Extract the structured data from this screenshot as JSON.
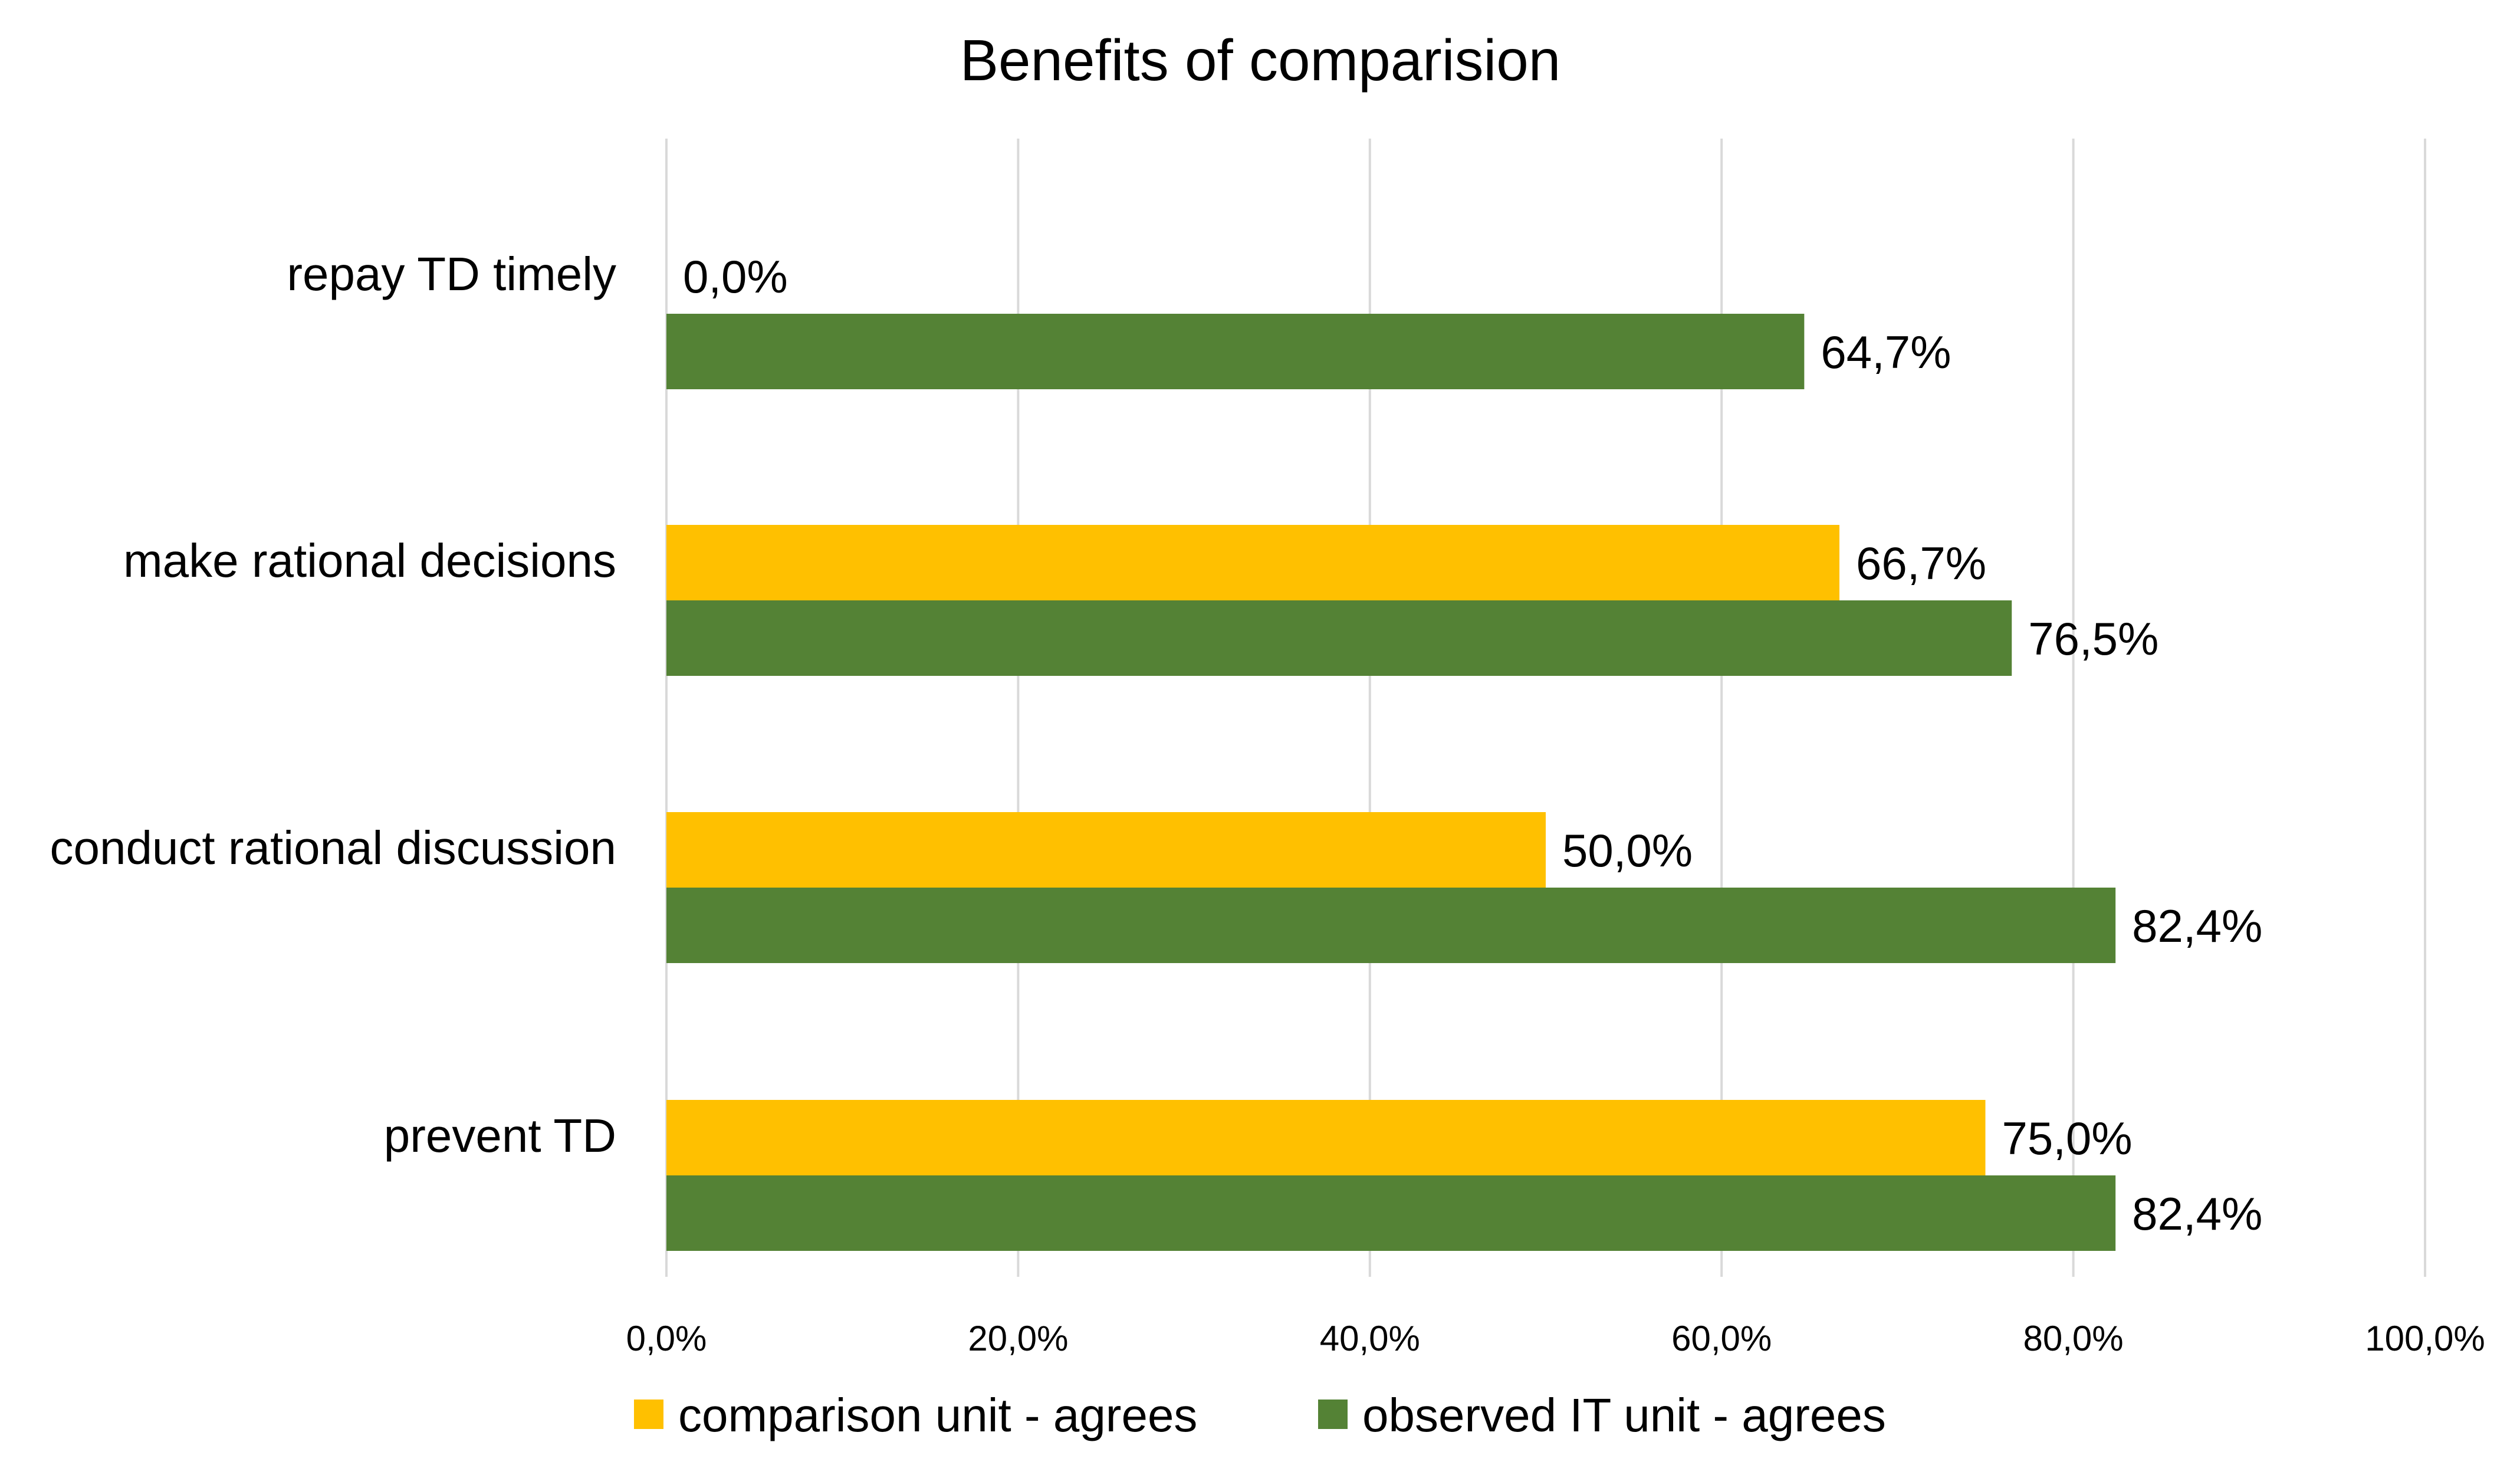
{
  "chart_data": {
    "type": "bar",
    "orientation": "horizontal",
    "title": "Benefits of comparision",
    "categories": [
      "repay TD timely",
      "make rational decisions",
      "conduct rational discussion",
      "prevent TD"
    ],
    "series": [
      {
        "name": "comparison unit - agrees",
        "color": "#FFC000",
        "values": [
          0.0,
          66.7,
          50.0,
          75.0
        ],
        "labels": [
          "0,0%",
          "66,7%",
          "50,0%",
          "75,0%"
        ]
      },
      {
        "name": "observed IT unit - agrees",
        "color": "#548235",
        "values": [
          64.7,
          76.5,
          82.4,
          82.4
        ],
        "labels": [
          "64,7%",
          "76,5%",
          "82,4%",
          "82,4%"
        ]
      }
    ],
    "xlim": [
      0,
      100
    ],
    "xticks": [
      0,
      20,
      40,
      60,
      80,
      100
    ],
    "xtick_labels": [
      "0,0%",
      "20,0%",
      "40,0%",
      "60,0%",
      "80,0%",
      "100,0%"
    ],
    "xlabel": "",
    "ylabel": "",
    "grid": true,
    "gridline_color": "#D9D9D9",
    "legend_position": "bottom"
  }
}
